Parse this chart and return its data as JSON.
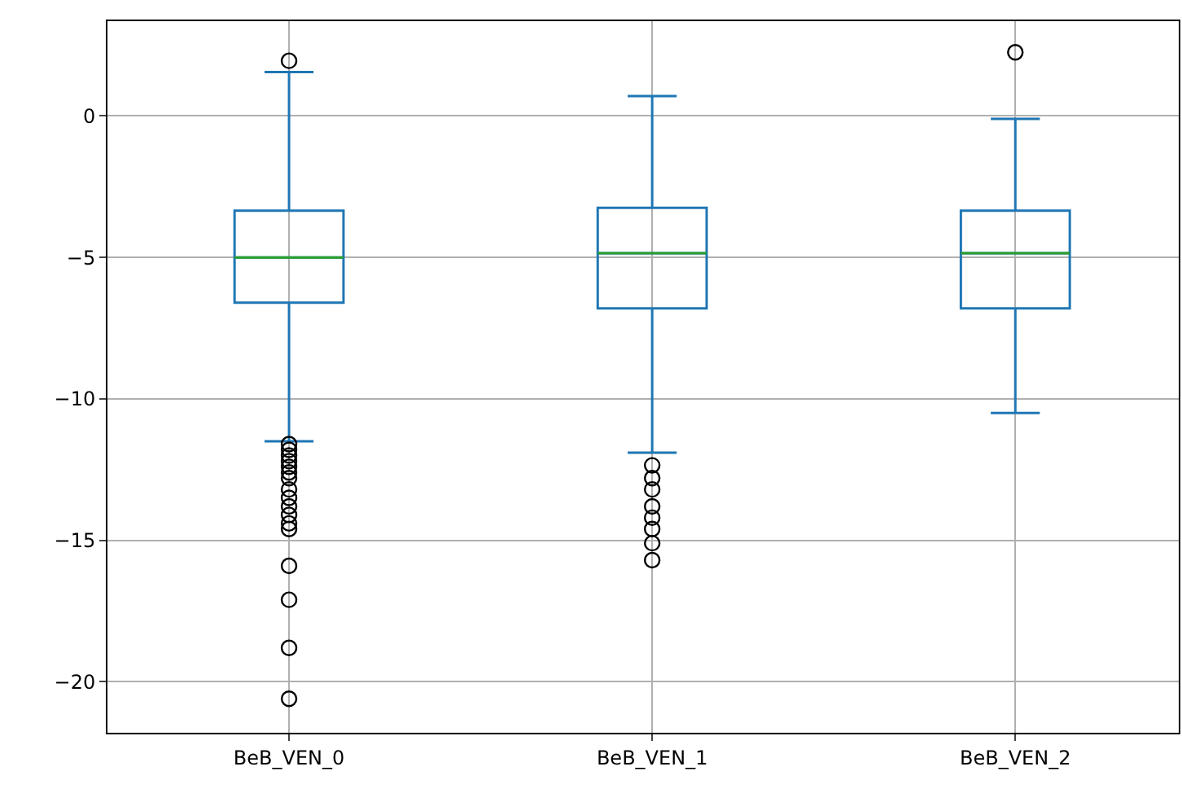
{
  "chart_data": {
    "type": "box",
    "categories": [
      "BeB_VEN_0",
      "BeB_VEN_1",
      "BeB_VEN_2"
    ],
    "color": "#1f77b4",
    "ylim": [
      -21.8,
      3.35
    ],
    "yticks": [
      0,
      -5,
      -10,
      -15,
      -20
    ],
    "grid": true,
    "marker": "circle",
    "boxes": [
      {
        "low": -11.5,
        "q1": -6.6,
        "median": -5.0,
        "q3": -3.35,
        "high": 1.55,
        "outliers": [
          1.95,
          -11.6,
          -11.8,
          -12.0,
          -12.2,
          -12.4,
          -12.6,
          -12.8,
          -13.2,
          -13.5,
          -13.8,
          -14.1,
          -14.4,
          -14.6,
          -15.9,
          -17.1,
          -18.8,
          -20.6
        ]
      },
      {
        "low": -11.9,
        "q1": -6.8,
        "median": -4.85,
        "q3": -3.25,
        "high": 0.7,
        "outliers": [
          -12.35,
          -12.8,
          -13.2,
          -13.8,
          -14.2,
          -14.6,
          -15.1,
          -15.7
        ]
      },
      {
        "low": -10.5,
        "q1": -6.8,
        "median": -4.85,
        "q3": -3.35,
        "high": -0.1,
        "outliers": [
          2.25
        ]
      }
    ]
  }
}
